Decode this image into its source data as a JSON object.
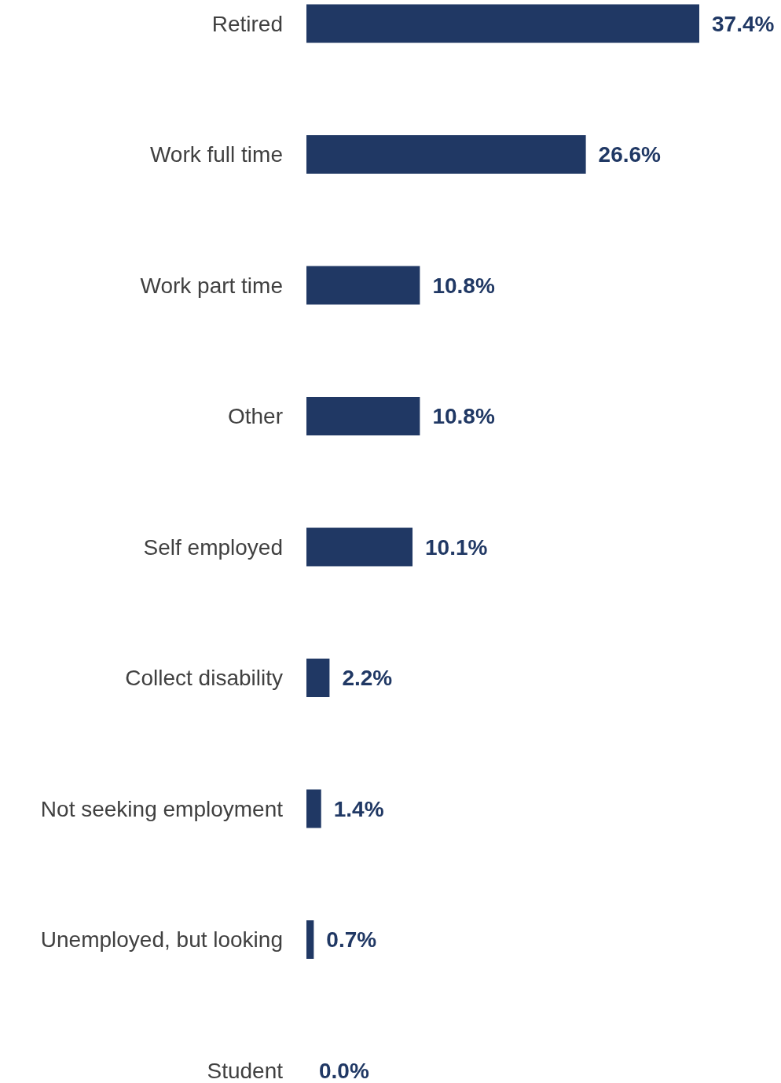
{
  "chart_data": {
    "type": "bar",
    "orientation": "horizontal",
    "categories": [
      "Retired",
      "Work full time",
      "Work part time",
      "Other",
      "Self employed",
      "Collect disability",
      "Not seeking employment",
      "Unemployed, but looking",
      "Student"
    ],
    "values": [
      37.4,
      26.6,
      10.8,
      10.8,
      10.1,
      2.2,
      1.4,
      0.7,
      0.0
    ],
    "value_labels": [
      "37.4%",
      "26.6%",
      "10.8%",
      "10.8%",
      "10.1%",
      "2.2%",
      "1.4%",
      "0.7%",
      "0.0%"
    ],
    "color": "#203864"
  }
}
